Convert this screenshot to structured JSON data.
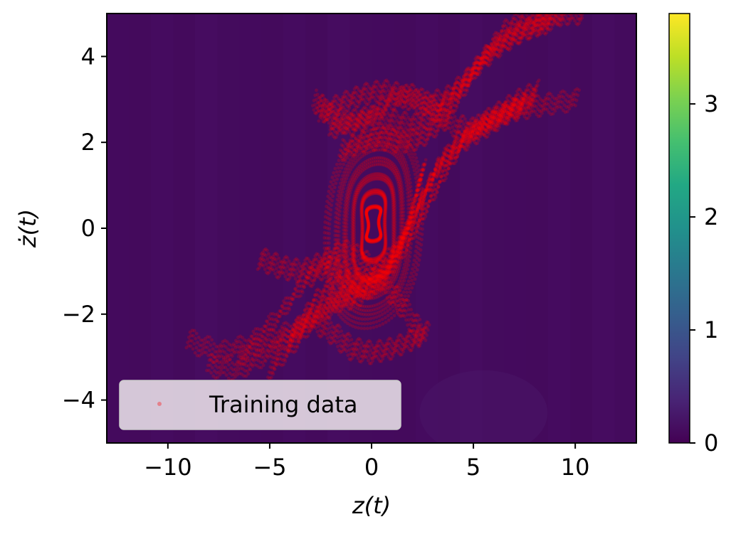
{
  "chart_data": {
    "type": "scatter",
    "title": "",
    "xlabel": "z(t)",
    "ylabel": "ż(t)",
    "xlim": [
      -13,
      13
    ],
    "ylim": [
      -5,
      5
    ],
    "x_ticks": [
      -10,
      -5,
      0,
      5,
      10
    ],
    "x_tick_labels": [
      "−10",
      "−5",
      "0",
      "5",
      "10"
    ],
    "y_ticks": [
      -4,
      -2,
      0,
      2,
      4
    ],
    "y_tick_labels": [
      "−4",
      "−2",
      "0",
      "2",
      "4"
    ],
    "grid": false,
    "background_field": {
      "description": "heatmap of near-zero values over the full domain",
      "approx_value": 0.05,
      "colormap": "viridis"
    },
    "colorbar": {
      "range": [
        0,
        3.8
      ],
      "ticks": [
        0,
        1,
        2,
        3
      ],
      "tick_labels": [
        "0",
        "1",
        "2",
        "3"
      ],
      "colormap": "viridis"
    },
    "series": [
      {
        "name": "Training data",
        "color": "#ff0000",
        "marker": "dot",
        "trajectories": [
          {
            "x": [
              -9.0,
              -7.5,
              -6,
              -4.5,
              -3.2,
              -2.2,
              -1.5,
              -0.8,
              0.0,
              0.9,
              1.6,
              2.2,
              2.6
            ],
            "y": [
              -2.6,
              -2.9,
              -2.7,
              -2.0,
              -1.2,
              -0.9,
              -1.0,
              -1.3,
              -1.4,
              -1.0,
              -0.2,
              0.8,
              1.5
            ]
          },
          {
            "x": [
              -8,
              -6.5,
              -5,
              -3.8,
              -2.8,
              -1.8,
              -0.8,
              0.2,
              1.2,
              2.0,
              2.8,
              3.5,
              4.5,
              5.5,
              6.5,
              7.5
            ],
            "y": [
              -3.2,
              -3.3,
              -2.9,
              -2.4,
              -1.7,
              -1.3,
              -1.2,
              -1.0,
              -0.5,
              0.2,
              1.0,
              1.6,
              2.0,
              2.3,
              2.6,
              2.9
            ]
          },
          {
            "x": [
              -6.5,
              -5,
              -3.6,
              -2.4,
              -1.4,
              -0.5,
              0.5,
              1.5,
              2.4,
              3.2,
              4.2,
              5.2,
              6.2,
              7.2,
              8.2
            ],
            "y": [
              -3.0,
              -2.6,
              -2.3,
              -1.9,
              -1.6,
              -1.4,
              -1.0,
              -0.3,
              0.6,
              1.4,
              2.0,
              2.4,
              2.7,
              3.0,
              3.2
            ]
          },
          {
            "x": [
              -5,
              -3.8,
              -2.6,
              -1.6,
              -0.6,
              0.5,
              1.6,
              2.6,
              3.6,
              4.6,
              5.6,
              6.6,
              7.6,
              8.8,
              10.2
            ],
            "y": [
              -3.3,
              -2.7,
              -2.0,
              -1.7,
              -1.6,
              -1.2,
              -0.5,
              0.4,
              1.3,
              2.1,
              2.5,
              2.7,
              2.8,
              2.9,
              3.0
            ]
          },
          {
            "x": [
              -4,
              -3,
              -2,
              -1,
              0,
              1,
              2,
              2.8
            ],
            "y": [
              -2.6,
              -2.1,
              -2.4,
              -2.8,
              -2.9,
              -2.8,
              -2.6,
              -2.4
            ]
          },
          {
            "x": [
              -5.5,
              -4.5,
              -3.5,
              -2.5,
              -1.5,
              -0.5,
              0.5,
              1.5,
              2.5
            ],
            "y": [
              -0.7,
              -0.9,
              -1.0,
              -0.8,
              -0.5,
              -0.7,
              -1.2,
              -1.8,
              -2.5
            ]
          },
          {
            "x": [
              -2.5,
              -1.5,
              -0.5,
              0.5,
              1.5,
              2.5,
              3.5,
              4.5,
              5.5,
              6.5,
              7.5,
              8.5,
              9.5
            ],
            "y": [
              2.7,
              2.9,
              3.1,
              3.2,
              3.1,
              2.9,
              3.0,
              3.4,
              3.9,
              4.3,
              4.6,
              4.8,
              5.0
            ]
          },
          {
            "x": [
              -2.0,
              -1.0,
              0.0,
              1.0,
              2.0,
              3.0,
              4.0,
              5.0,
              6.0,
              7.0,
              8.0,
              8.8
            ],
            "y": [
              2.3,
              2.5,
              2.6,
              2.5,
              2.4,
              2.6,
              3.1,
              3.7,
              4.2,
              4.5,
              4.7,
              4.8
            ]
          },
          {
            "x": [
              -1.5,
              -0.5,
              0.5,
              1.5,
              2.5,
              3.5,
              4.5,
              5.5,
              6.5,
              7.5,
              8.5,
              9.5,
              10.5
            ],
            "y": [
              1.8,
              2.0,
              2.1,
              2.0,
              2.1,
              2.5,
              3.2,
              4.0,
              4.6,
              4.9,
              5.0,
              5.0,
              5.0
            ]
          },
          {
            "x": [
              -2.8,
              -2.0,
              -1.0,
              0.0,
              1.0,
              2.0,
              3.0,
              4.0,
              5.0,
              6.0,
              7.0,
              8.0
            ],
            "y": [
              3.0,
              2.6,
              2.4,
              2.6,
              3.0,
              3.1,
              2.8,
              2.4,
              2.3,
              2.5,
              2.8,
              3.0
            ]
          }
        ],
        "orbits": [
          {
            "cx": 0.1,
            "cy": 0.1,
            "rx": 0.25,
            "ry": 0.4
          },
          {
            "cx": 0.1,
            "cy": 0.05,
            "rx": 0.55,
            "ry": 0.8
          },
          {
            "cx": 0.1,
            "cy": 0.0,
            "rx": 1.0,
            "ry": 1.2
          },
          {
            "cx": 0.1,
            "cy": 0.0,
            "rx": 1.4,
            "ry": 1.55
          },
          {
            "cx": 0.1,
            "cy": 0.0,
            "rx": 1.8,
            "ry": 1.9
          },
          {
            "cx": 0.1,
            "cy": 0.0,
            "rx": 2.3,
            "ry": 2.2
          }
        ]
      }
    ],
    "legend": {
      "position": "lower-left",
      "entries": [
        "Training data"
      ]
    }
  }
}
